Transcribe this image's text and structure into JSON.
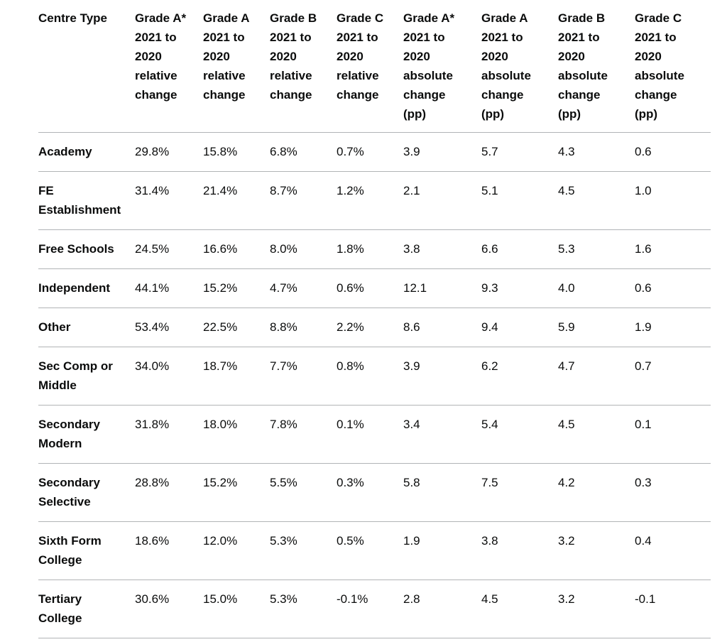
{
  "table": {
    "header": [
      "Centre Type",
      "Grade A* 2021 to 2020 relative change",
      "Grade A 2021 to 2020 relative change",
      "Grade B 2021 to 2020 relative change",
      "Grade C 2021 to 2020 relative change",
      "Grade A* 2021 to 2020 absolute change (pp)",
      "Grade A 2021 to 2020 absolute change (pp)",
      "Grade B 2021 to 2020 absolute change (pp)",
      "Grade C 2021 to 2020 absolute change (pp)"
    ],
    "rows": [
      [
        "Academy",
        "29.8%",
        "15.8%",
        "6.8%",
        "0.7%",
        "3.9",
        "5.7",
        "4.3",
        "0.6"
      ],
      [
        "FE Establishment",
        "31.4%",
        "21.4%",
        "8.7%",
        "1.2%",
        "2.1",
        "5.1",
        "4.5",
        "1.0"
      ],
      [
        "Free Schools",
        "24.5%",
        "16.6%",
        "8.0%",
        "1.8%",
        "3.8",
        "6.6",
        "5.3",
        "1.6"
      ],
      [
        "Independent",
        "44.1%",
        "15.2%",
        "4.7%",
        "0.6%",
        "12.1",
        "9.3",
        "4.0",
        "0.6"
      ],
      [
        "Other",
        "53.4%",
        "22.5%",
        "8.8%",
        "2.2%",
        "8.6",
        "9.4",
        "5.9",
        "1.9"
      ],
      [
        "Sec Comp or Middle",
        "34.0%",
        "18.7%",
        "7.7%",
        "0.8%",
        "3.9",
        "6.2",
        "4.7",
        "0.7"
      ],
      [
        "Secondary Modern",
        "31.8%",
        "18.0%",
        "7.8%",
        "0.1%",
        "3.4",
        "5.4",
        "4.5",
        "0.1"
      ],
      [
        "Secondary Selective",
        "28.8%",
        "15.2%",
        "5.5%",
        "0.3%",
        "5.8",
        "7.5",
        "4.2",
        "0.3"
      ],
      [
        "Sixth Form College",
        "18.6%",
        "12.0%",
        "5.3%",
        "0.5%",
        "1.9",
        "3.8",
        "3.2",
        "0.4"
      ],
      [
        "Tertiary College",
        "30.6%",
        "15.0%",
        "5.3%",
        "-0.1%",
        "2.8",
        "4.5",
        "3.2",
        "-0.1"
      ]
    ]
  }
}
